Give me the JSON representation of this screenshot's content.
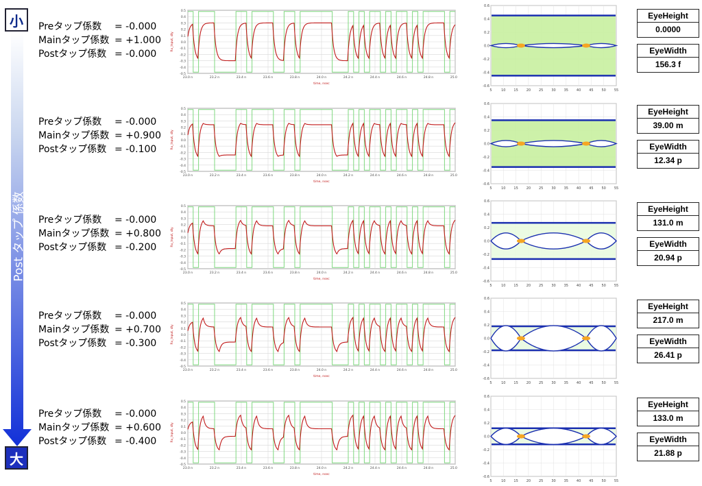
{
  "side": {
    "small_label": "小",
    "large_label": "大",
    "axis_title": "Post タップ 係数"
  },
  "rows": [
    {
      "pre_label": "Preタップ係数",
      "pre": "= -0.000",
      "main_label": "Mainタップ係数",
      "main": "= +1.000",
      "post_label": "Postタップ係数",
      "post": "= -0.000",
      "eye_height_label": "EyeHeight",
      "eye_height": "0.0000",
      "eye_width_label": "EyeWidth",
      "eye_width": "156.3 f"
    },
    {
      "pre_label": "Preタップ係数",
      "pre": "= -0.000",
      "main_label": "Mainタップ係数",
      "main": "= +0.900",
      "post_label": "Postタップ係数",
      "post": "= -0.100",
      "eye_height_label": "EyeHeight",
      "eye_height": "39.00 m",
      "eye_width_label": "EyeWidth",
      "eye_width": "12.34 p"
    },
    {
      "pre_label": "Preタップ係数",
      "pre": "= -0.000",
      "main_label": "Mainタップ係数",
      "main": "= +0.800",
      "post_label": "Postタップ係数",
      "post": "= -0.200",
      "eye_height_label": "EyeHeight",
      "eye_height": "131.0 m",
      "eye_width_label": "EyeWidth",
      "eye_width": "20.94 p"
    },
    {
      "pre_label": "Preタップ係数",
      "pre": "= -0.000",
      "main_label": "Mainタップ係数",
      "main": "= +0.700",
      "post_label": "Postタップ係数",
      "post": "= -0.300",
      "eye_height_label": "EyeHeight",
      "eye_height": "217.0 m",
      "eye_width_label": "EyeWidth",
      "eye_width": "26.41 p"
    },
    {
      "pre_label": "Preタップ係数",
      "pre": "= -0.000",
      "main_label": "Mainタップ係数",
      "main": "= +0.600",
      "post_label": "Postタップ係数",
      "post": "= -0.400",
      "eye_height_label": "EyeHeight",
      "eye_height": "133.0 m",
      "eye_width_label": "EyeWidth",
      "eye_width": "21.88 p"
    }
  ],
  "chart_data": {
    "waveform": {
      "type": "line",
      "y_label": "Rx_Input, dly",
      "x_label": "time, nsec",
      "x_ticks": [
        "23.0 n",
        "23.2 n",
        "23.4 n",
        "23.6 n",
        "23.8 n",
        "24.0 n",
        "24.2 n",
        "24.4 n",
        "24.6 n",
        "24.8 n",
        "25.0 n"
      ],
      "y_ticks": [
        "0.5",
        "0.4",
        "0.3",
        "0.2",
        "0.1",
        "0.0",
        "-0.1",
        "-0.2",
        "-0.3",
        "-0.4",
        "-0.5"
      ],
      "series": [
        {
          "color": "#c01818"
        },
        {
          "color": "#7fd87f"
        }
      ],
      "bits": [
        1,
        0,
        1,
        1,
        1,
        0,
        0,
        0,
        0,
        1,
        1,
        0,
        1,
        1,
        1,
        1,
        0,
        0,
        1,
        1,
        0,
        1,
        1,
        1,
        1,
        1,
        1,
        0,
        0,
        0,
        1,
        0,
        1,
        0,
        1,
        1,
        0,
        1,
        0,
        1,
        1,
        0,
        1,
        0,
        1,
        1,
        1,
        1,
        0,
        1
      ],
      "post_taps": [
        0.0,
        0.1,
        0.2,
        0.3,
        0.4
      ],
      "ylim": [
        -0.5,
        0.5
      ]
    },
    "eye": {
      "type": "heatmap",
      "x_ticks": [
        "5",
        "10",
        "15",
        "20",
        "25",
        "30",
        "35",
        "40",
        "45",
        "50",
        "55"
      ],
      "y_ticks": [
        "0.6",
        "0.4",
        "0.2",
        "0.0",
        "-0.2",
        "-0.4",
        "-0.6"
      ],
      "xlim": [
        5,
        55
      ],
      "ylim": [
        -0.6,
        0.6
      ],
      "eye_openings": [
        0.0,
        0.039,
        0.131,
        0.217,
        0.133
      ],
      "rail_levels": [
        0.45,
        0.35,
        0.27,
        0.18,
        0.12
      ]
    }
  }
}
